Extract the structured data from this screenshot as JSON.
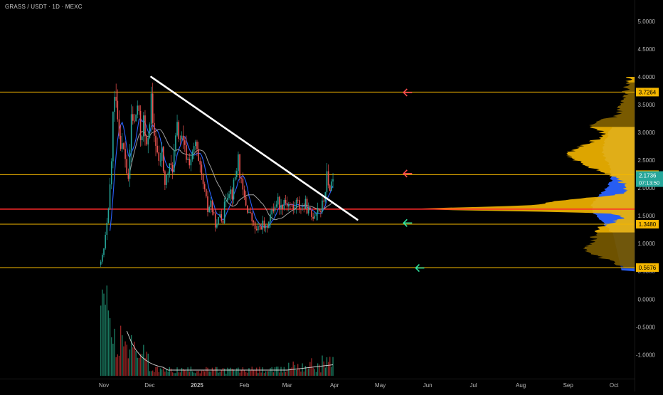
{
  "header": {
    "symbol": "GRASS / USDT · 1D · MEXC"
  },
  "chart_data": {
    "type": "candlestick",
    "price_axis": {
      "ticks": [
        "5.0000",
        "4.5000",
        "4.0000",
        "3.5000",
        "3.0000",
        "2.5000",
        "2.0000",
        "1.5000",
        "1.0000",
        "0.5000",
        "0.0000",
        "-0.5000",
        "-1.0000"
      ],
      "tick_values": [
        5.0,
        4.5,
        4.0,
        3.5,
        3.0,
        2.5,
        2.0,
        1.5,
        1.0,
        0.5,
        0.0,
        -0.5,
        -1.0
      ],
      "ylim": [
        -1.2,
        5.3
      ]
    },
    "time_axis": {
      "labels": [
        "Nov",
        "Dec",
        "2025",
        "Feb",
        "Mar",
        "Apr",
        "May",
        "Jun",
        "Jul",
        "Aug",
        "Sep",
        "Oct"
      ],
      "label_days": [
        0,
        30,
        61,
        92,
        120,
        151,
        181,
        212,
        242,
        273,
        304,
        334
      ]
    },
    "horizontal_levels": [
      {
        "value": 3.7264,
        "label": "3.7264",
        "color": "#f5b700",
        "tag_color": "#f5b700",
        "tag_text_color": "#000000"
      },
      {
        "value": 2.2399,
        "label": "2.2399",
        "color": "#f5b700",
        "tag_color": "#f5b700",
        "tag_text_color": "#000000"
      },
      {
        "value": 1.348,
        "label": "1.3480",
        "color": "#f5b700",
        "tag_color": "#f5b700",
        "tag_text_color": "#000000"
      },
      {
        "value": 0.5676,
        "label": "0.5676",
        "color": "#f5b700",
        "tag_color": "#f5b700",
        "tag_text_color": "#000000"
      },
      {
        "value": 1.62,
        "label": "",
        "color": "#ff2b2b"
      }
    ],
    "current_price": {
      "value": 2.1736,
      "label": "2.1736",
      "countdown": "07:13:50",
      "color": "#26a69a"
    },
    "trendline": {
      "from": {
        "day": 31,
        "price": 4.0
      },
      "to": {
        "day": 166,
        "price": 1.43
      },
      "color": "#ffffff"
    },
    "arrows": [
      {
        "day": 199,
        "price": 3.72,
        "direction": "left",
        "color": "#ff4d4d"
      },
      {
        "day": 199,
        "price": 2.26,
        "direction": "left",
        "color": "#ff4d4d"
      },
      {
        "day": 199,
        "price": 1.37,
        "direction": "left",
        "color": "#2ee6a0"
      },
      {
        "day": 207,
        "price": 0.56,
        "direction": "left",
        "color": "#2ee6a0"
      }
    ],
    "candle_anchors": [
      [
        -2,
        0.62
      ],
      [
        0,
        0.9
      ],
      [
        3,
        1.55
      ],
      [
        5,
        2.5
      ],
      [
        6,
        3.3
      ],
      [
        8,
        3.75
      ],
      [
        10,
        3.0
      ],
      [
        12,
        2.75
      ],
      [
        14,
        2.55
      ],
      [
        16,
        2.05
      ],
      [
        18,
        3.3
      ],
      [
        20,
        3.15
      ],
      [
        22,
        3.5
      ],
      [
        24,
        2.9
      ],
      [
        26,
        3.2
      ],
      [
        28,
        2.65
      ],
      [
        30,
        3.3
      ],
      [
        31,
        3.55
      ],
      [
        32,
        3.05
      ],
      [
        34,
        2.85
      ],
      [
        36,
        2.4
      ],
      [
        38,
        2.65
      ],
      [
        40,
        2.05
      ],
      [
        42,
        2.3
      ],
      [
        45,
        2.4
      ],
      [
        48,
        3.05
      ],
      [
        50,
        2.9
      ],
      [
        52,
        2.75
      ],
      [
        55,
        2.5
      ],
      [
        58,
        2.55
      ],
      [
        60,
        2.8
      ],
      [
        62,
        2.4
      ],
      [
        65,
        2.05
      ],
      [
        68,
        1.6
      ],
      [
        70,
        1.75
      ],
      [
        72,
        1.45
      ],
      [
        74,
        1.3
      ],
      [
        76,
        1.55
      ],
      [
        78,
        1.45
      ],
      [
        80,
        1.85
      ],
      [
        82,
        2.0
      ],
      [
        84,
        1.9
      ],
      [
        86,
        2.2
      ],
      [
        88,
        2.55
      ],
      [
        90,
        2.05
      ],
      [
        92,
        1.8
      ],
      [
        94,
        1.62
      ],
      [
        96,
        1.5
      ],
      [
        98,
        1.33
      ],
      [
        100,
        1.22
      ],
      [
        102,
        1.3
      ],
      [
        104,
        1.35
      ],
      [
        106,
        1.25
      ],
      [
        108,
        1.45
      ],
      [
        110,
        1.55
      ],
      [
        112,
        1.72
      ],
      [
        114,
        1.78
      ],
      [
        116,
        1.65
      ],
      [
        118,
        1.8
      ],
      [
        120,
        1.72
      ],
      [
        122,
        1.7
      ],
      [
        124,
        1.6
      ],
      [
        126,
        1.75
      ],
      [
        128,
        1.68
      ],
      [
        130,
        1.62
      ],
      [
        132,
        1.7
      ],
      [
        134,
        1.58
      ],
      [
        136,
        1.48
      ],
      [
        138,
        1.55
      ],
      [
        140,
        1.65
      ],
      [
        142,
        1.6
      ],
      [
        144,
        1.78
      ],
      [
        146,
        2.2
      ],
      [
        147,
        2.0
      ],
      [
        149,
        2.1
      ],
      [
        150,
        2.17
      ]
    ],
    "volume_axis_note": "volume histogram drawn below price pane",
    "volume_profile": {
      "side": "right",
      "colors": [
        "#2962ff",
        "#f5b700"
      ]
    }
  }
}
